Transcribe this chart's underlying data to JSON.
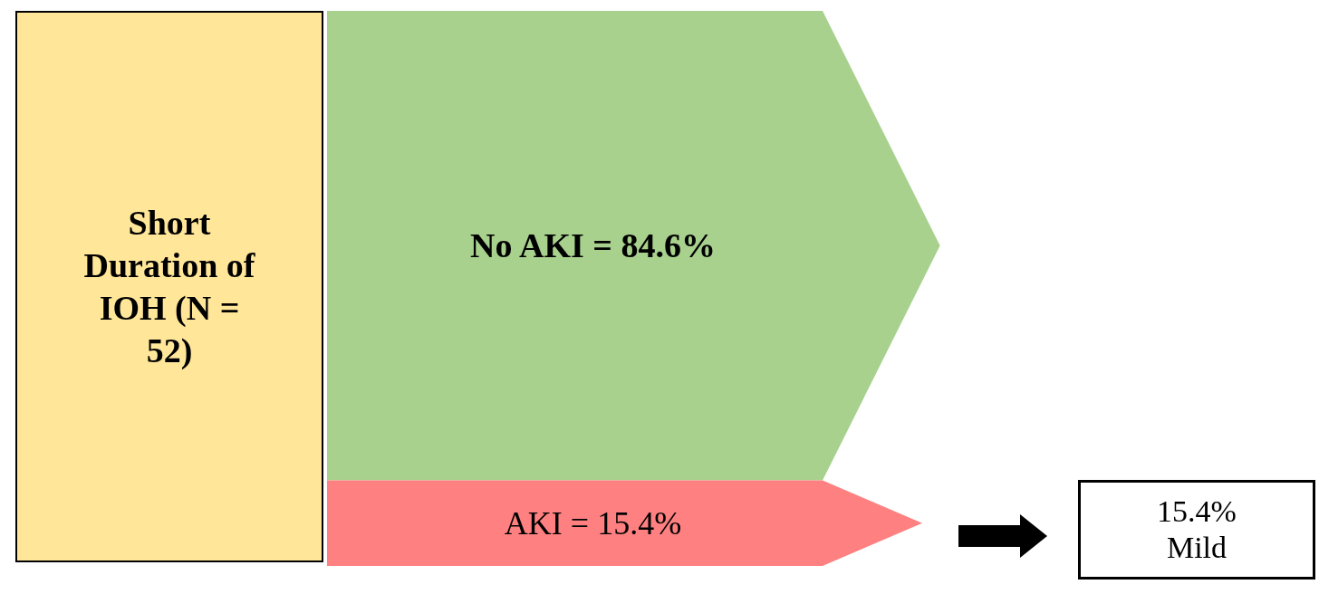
{
  "chart_data": {
    "type": "other",
    "title": "Short Duration of IOH (N = 52)",
    "categories": [
      null,
      null
    ],
    "values": [
      84.6,
      15.4
    ],
    "value_labels": [
      "No AKI = 84.6%",
      "AKI = 15.4%"
    ],
    "colors": [
      "#a9d18e",
      "#ff8080"
    ],
    "annotations": [
      "15.4% Mild"
    ]
  }
}
